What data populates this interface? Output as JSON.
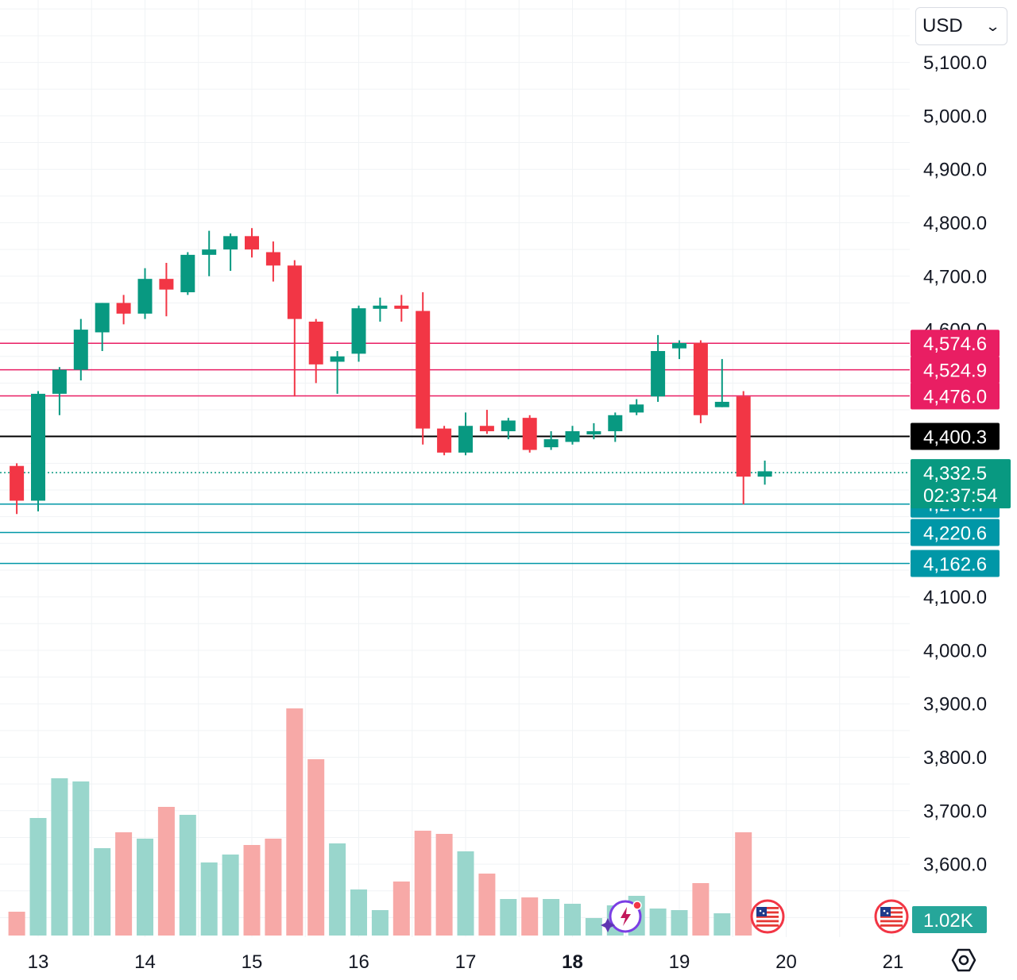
{
  "currency_selector": {
    "value": "USD"
  },
  "settings": {
    "icon": "gear-icon"
  },
  "event_markers": [
    {
      "day": "18",
      "icon": "ai-sparkle-icon"
    },
    {
      "day": "20",
      "icon": "us-flag-icon"
    },
    {
      "day": "21",
      "icon": "us-flag-icon"
    }
  ],
  "colors": {
    "up": "#089981",
    "down": "#f23645",
    "volume_up": "#99d6cc",
    "volume_down": "#f7a9a7",
    "resistance": "#e91e63",
    "support": "#0097a7",
    "current_price": "#089981",
    "reference": "#000000"
  },
  "chart_data": {
    "type": "candlestick",
    "x_axis": {
      "labels": [
        "13",
        "14",
        "15",
        "16",
        "17",
        "18",
        "19",
        "20",
        "21"
      ],
      "bold_label": "18"
    },
    "y_axis": {
      "range": [
        3500,
        5150
      ],
      "tick_labels": [
        "5,100.0",
        "5,000.0",
        "4,900.0",
        "4,800.0",
        "4,700.0",
        "4,600.0",
        "4,100.0",
        "4,000.0",
        "3,900.0",
        "3,800.0",
        "3,700.0",
        "3,600.0"
      ]
    },
    "candles": [
      {
        "day": 12.8,
        "o": 4345,
        "h": 4350,
        "l": 4255,
        "c": 4280
      },
      {
        "day": 13.0,
        "o": 4280,
        "h": 4485,
        "l": 4260,
        "c": 4480
      },
      {
        "day": 13.2,
        "o": 4480,
        "h": 4530,
        "l": 4440,
        "c": 4525
      },
      {
        "day": 13.4,
        "o": 4525,
        "h": 4620,
        "l": 4505,
        "c": 4600
      },
      {
        "day": 13.6,
        "o": 4595,
        "h": 4650,
        "l": 4560,
        "c": 4650
      },
      {
        "day": 13.8,
        "o": 4650,
        "h": 4665,
        "l": 4610,
        "c": 4630
      },
      {
        "day": 14.0,
        "o": 4630,
        "h": 4715,
        "l": 4620,
        "c": 4695
      },
      {
        "day": 14.2,
        "o": 4695,
        "h": 4725,
        "l": 4625,
        "c": 4675
      },
      {
        "day": 14.4,
        "o": 4670,
        "h": 4745,
        "l": 4665,
        "c": 4740
      },
      {
        "day": 14.6,
        "o": 4740,
        "h": 4785,
        "l": 4700,
        "c": 4750
      },
      {
        "day": 14.8,
        "o": 4750,
        "h": 4780,
        "l": 4710,
        "c": 4775
      },
      {
        "day": 15.0,
        "o": 4775,
        "h": 4790,
        "l": 4735,
        "c": 4750
      },
      {
        "day": 15.2,
        "o": 4745,
        "h": 4765,
        "l": 4690,
        "c": 4720
      },
      {
        "day": 15.4,
        "o": 4720,
        "h": 4730,
        "l": 4475,
        "c": 4620
      },
      {
        "day": 15.6,
        "o": 4615,
        "h": 4620,
        "l": 4500,
        "c": 4535
      },
      {
        "day": 15.8,
        "o": 4540,
        "h": 4560,
        "l": 4480,
        "c": 4550
      },
      {
        "day": 16.0,
        "o": 4555,
        "h": 4645,
        "l": 4540,
        "c": 4640
      },
      {
        "day": 16.2,
        "o": 4640,
        "h": 4660,
        "l": 4615,
        "c": 4645
      },
      {
        "day": 16.4,
        "o": 4645,
        "h": 4665,
        "l": 4615,
        "c": 4640
      },
      {
        "day": 16.6,
        "o": 4635,
        "h": 4670,
        "l": 4385,
        "c": 4415
      },
      {
        "day": 16.8,
        "o": 4415,
        "h": 4420,
        "l": 4365,
        "c": 4370
      },
      {
        "day": 17.0,
        "o": 4370,
        "h": 4445,
        "l": 4365,
        "c": 4420
      },
      {
        "day": 17.2,
        "o": 4420,
        "h": 4450,
        "l": 4405,
        "c": 4410
      },
      {
        "day": 17.4,
        "o": 4410,
        "h": 4435,
        "l": 4395,
        "c": 4430
      },
      {
        "day": 17.6,
        "o": 4435,
        "h": 4440,
        "l": 4370,
        "c": 4375
      },
      {
        "day": 17.8,
        "o": 4380,
        "h": 4410,
        "l": 4375,
        "c": 4395
      },
      {
        "day": 18.0,
        "o": 4390,
        "h": 4420,
        "l": 4385,
        "c": 4410
      },
      {
        "day": 18.2,
        "o": 4405,
        "h": 4425,
        "l": 4395,
        "c": 4410
      },
      {
        "day": 18.4,
        "o": 4410,
        "h": 4445,
        "l": 4390,
        "c": 4440
      },
      {
        "day": 18.6,
        "o": 4445,
        "h": 4470,
        "l": 4440,
        "c": 4460
      },
      {
        "day": 18.8,
        "o": 4475,
        "h": 4590,
        "l": 4465,
        "c": 4560
      },
      {
        "day": 19.0,
        "o": 4565,
        "h": 4580,
        "l": 4545,
        "c": 4575
      },
      {
        "day": 19.2,
        "o": 4575,
        "h": 4580,
        "l": 4425,
        "c": 4440
      },
      {
        "day": 19.4,
        "o": 4455,
        "h": 4545,
        "l": 4455,
        "c": 4465
      },
      {
        "day": 19.6,
        "o": 4475,
        "h": 4485,
        "l": 4273,
        "c": 4325
      },
      {
        "day": 19.8,
        "o": 4325,
        "h": 4355,
        "l": 4310,
        "c": 4335
      }
    ],
    "volume": [
      {
        "day": 12.8,
        "v": 0.15,
        "dir": "down"
      },
      {
        "day": 13.0,
        "v": 0.74,
        "dir": "up"
      },
      {
        "day": 13.2,
        "v": 0.99,
        "dir": "up"
      },
      {
        "day": 13.4,
        "v": 0.97,
        "dir": "up"
      },
      {
        "day": 13.6,
        "v": 0.55,
        "dir": "up"
      },
      {
        "day": 13.8,
        "v": 0.65,
        "dir": "down"
      },
      {
        "day": 14.0,
        "v": 0.61,
        "dir": "up"
      },
      {
        "day": 14.2,
        "v": 0.81,
        "dir": "down"
      },
      {
        "day": 14.4,
        "v": 0.76,
        "dir": "up"
      },
      {
        "day": 14.6,
        "v": 0.46,
        "dir": "up"
      },
      {
        "day": 14.8,
        "v": 0.51,
        "dir": "up"
      },
      {
        "day": 15.0,
        "v": 0.57,
        "dir": "down"
      },
      {
        "day": 15.2,
        "v": 0.61,
        "dir": "down"
      },
      {
        "day": 15.4,
        "v": 1.43,
        "dir": "down"
      },
      {
        "day": 15.6,
        "v": 1.11,
        "dir": "down"
      },
      {
        "day": 15.8,
        "v": 0.58,
        "dir": "up"
      },
      {
        "day": 16.0,
        "v": 0.29,
        "dir": "up"
      },
      {
        "day": 16.2,
        "v": 0.16,
        "dir": "up"
      },
      {
        "day": 16.4,
        "v": 0.34,
        "dir": "down"
      },
      {
        "day": 16.6,
        "v": 0.66,
        "dir": "down"
      },
      {
        "day": 16.8,
        "v": 0.64,
        "dir": "down"
      },
      {
        "day": 17.0,
        "v": 0.53,
        "dir": "up"
      },
      {
        "day": 17.2,
        "v": 0.39,
        "dir": "down"
      },
      {
        "day": 17.4,
        "v": 0.23,
        "dir": "up"
      },
      {
        "day": 17.6,
        "v": 0.24,
        "dir": "down"
      },
      {
        "day": 17.8,
        "v": 0.23,
        "dir": "up"
      },
      {
        "day": 18.0,
        "v": 0.2,
        "dir": "up"
      },
      {
        "day": 18.2,
        "v": 0.11,
        "dir": "up"
      },
      {
        "day": 18.4,
        "v": 0.19,
        "dir": "up"
      },
      {
        "day": 18.6,
        "v": 0.25,
        "dir": "up"
      },
      {
        "day": 18.8,
        "v": 0.17,
        "dir": "up"
      },
      {
        "day": 19.0,
        "v": 0.16,
        "dir": "up"
      },
      {
        "day": 19.2,
        "v": 0.33,
        "dir": "down"
      },
      {
        "day": 19.4,
        "v": 0.14,
        "dir": "up"
      },
      {
        "day": 19.6,
        "v": 0.65,
        "dir": "down"
      }
    ],
    "volume_label": "1.02K",
    "price_levels": [
      {
        "value": 4574.6,
        "label": "4,574.6",
        "kind": "resistance"
      },
      {
        "value": 4524.9,
        "label": "4,524.9",
        "kind": "resistance"
      },
      {
        "value": 4476.0,
        "label": "4,476.0",
        "kind": "resistance"
      },
      {
        "value": 4400.3,
        "label": "4,400.3",
        "kind": "reference"
      },
      {
        "value": 4273.7,
        "label": "4,273.7",
        "kind": "support"
      },
      {
        "value": 4220.6,
        "label": "4,220.6",
        "kind": "support"
      },
      {
        "value": 4162.6,
        "label": "4,162.6",
        "kind": "support"
      }
    ],
    "current_price": {
      "value": 4332.5,
      "label": "4,332.5",
      "countdown": "02:37:54"
    }
  }
}
